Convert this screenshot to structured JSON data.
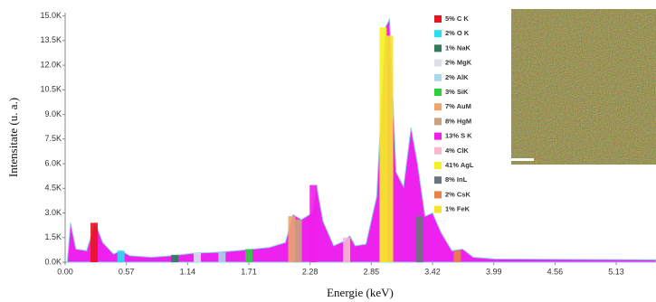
{
  "chart_data": {
    "type": "spectrum",
    "xlabel": "Energie (keV)",
    "ylabel": "Intensitate (u. a.)",
    "xlim": [
      0,
      5.5
    ],
    "ylim": [
      0,
      15200
    ],
    "xticks": [
      {
        "value": 0,
        "label": "0.00"
      },
      0.57,
      1.14,
      1.71,
      2.28,
      2.85,
      3.42,
      3.99,
      4.56,
      5.13
    ],
    "yticks": [
      {
        "value": 0,
        "label": "0.0K"
      },
      {
        "value": 1500,
        "label": "1.5K"
      },
      {
        "value": 3000,
        "label": "3.0K"
      },
      {
        "value": 4500,
        "label": "4.5K"
      },
      {
        "value": 6000,
        "label": "6.0K"
      },
      {
        "value": 7500,
        "label": "7.5K"
      },
      {
        "value": 9000,
        "label": "9.0K"
      },
      {
        "value": 10500,
        "label": "10.5K"
      },
      {
        "value": 12000,
        "label": "12.0K"
      },
      {
        "value": 13500,
        "label": "13.5K"
      },
      {
        "value": 15000,
        "label": "15.0K"
      }
    ],
    "spectrum": {
      "color": "#ee22ee",
      "x": [
        0.02,
        0.05,
        0.1,
        0.2,
        0.28,
        0.35,
        0.45,
        0.52,
        0.6,
        0.8,
        1.0,
        1.2,
        1.4,
        1.6,
        1.75,
        1.9,
        2.05,
        2.12,
        2.2,
        2.3,
        2.34,
        2.4,
        2.5,
        2.6,
        2.65,
        2.7,
        2.8,
        2.9,
        2.98,
        3.02,
        3.08,
        3.15,
        3.22,
        3.28,
        3.35,
        3.42,
        3.5,
        3.6,
        3.7,
        3.8,
        4.0,
        5.5
      ],
      "y": [
        0,
        2400,
        800,
        700,
        2400,
        1200,
        500,
        700,
        400,
        300,
        400,
        550,
        600,
        700,
        800,
        900,
        1200,
        2900,
        2600,
        3000,
        4700,
        2500,
        1000,
        1300,
        1600,
        1000,
        1100,
        4000,
        14300,
        14800,
        5500,
        4600,
        8200,
        6000,
        2800,
        3000,
        1800,
        700,
        800,
        300,
        200,
        150
      ]
    },
    "elements": [
      {
        "label": "5% C K",
        "color": "#e8141e",
        "energy": 0.27,
        "height": 2400
      },
      {
        "label": "2% O K",
        "color": "#27e0f0",
        "energy": 0.52,
        "height": 700
      },
      {
        "label": "1% NaK",
        "color": "#2e7d5a",
        "energy": 1.02,
        "height": 450
      },
      {
        "label": "2% MgK",
        "color": "#dde0ec",
        "energy": 1.23,
        "height": 550
      },
      {
        "label": "2% AlK",
        "color": "#a9d8e8",
        "energy": 1.46,
        "height": 600
      },
      {
        "label": "3% SiK",
        "color": "#2ed13b",
        "energy": 1.71,
        "height": 800
      },
      {
        "label": "7% AuM",
        "color": "#f0a36b",
        "energy": 2.11,
        "height": 2800
      },
      {
        "label": "8% HgM",
        "color": "#c9a27e",
        "energy": 2.17,
        "height": 2600
      },
      {
        "label": "13% S K",
        "color": "#f01ee8",
        "energy": 2.31,
        "height": 4700
      },
      {
        "label": "4% ClK",
        "color": "#f7b8d0",
        "energy": 2.62,
        "height": 1500
      },
      {
        "label": "41% AgL",
        "color": "#f6f21e",
        "energy": 2.96,
        "height": 14300
      },
      {
        "label": "8% InL",
        "color": "#6b7280",
        "energy": 3.3,
        "height": 2800
      },
      {
        "label": "2% CsK",
        "color": "#e8804a",
        "energy": 3.65,
        "height": 700
      },
      {
        "label": "1% FeK",
        "color": "#f5e62a",
        "energy": 3.02,
        "height": 13800
      }
    ]
  }
}
